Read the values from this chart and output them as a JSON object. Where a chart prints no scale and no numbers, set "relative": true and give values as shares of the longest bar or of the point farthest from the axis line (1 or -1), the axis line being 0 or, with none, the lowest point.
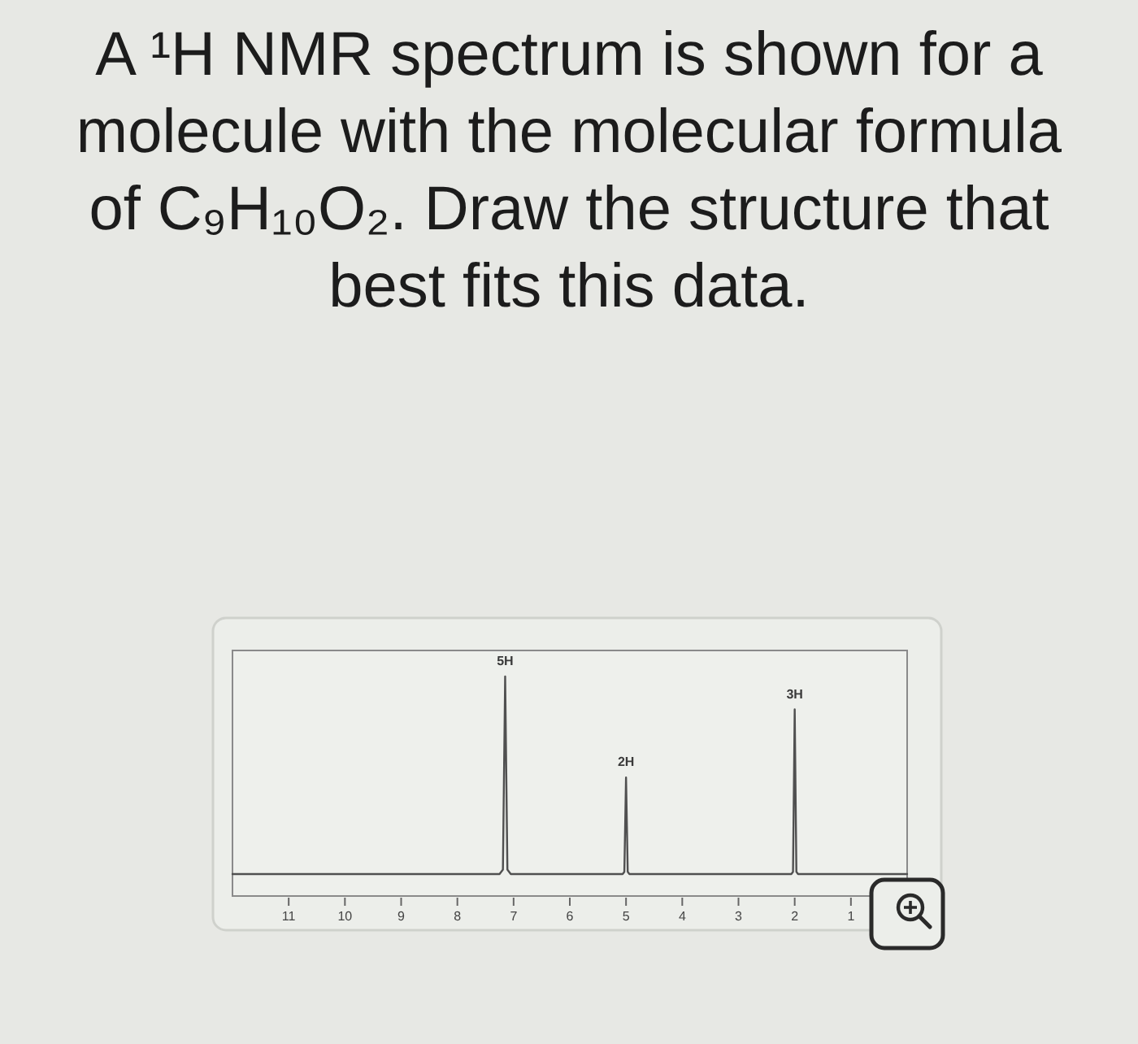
{
  "chart_data": {
    "type": "line",
    "title": "A ¹H NMR spectrum is shown for a molecule with the molecular formula of C₉H₁₀O₂. Draw the structure that best fits this data.",
    "x": [
      12,
      7.25,
      7.19,
      7.15,
      7.11,
      7.05,
      5.06,
      5.03,
      5.0,
      4.97,
      4.94,
      2.06,
      2.03,
      2.0,
      1.97,
      1.94,
      0
    ],
    "values": [
      0.1,
      0.1,
      0.12,
      1,
      0.12,
      0.1,
      0.1,
      0.11,
      0.54,
      0.11,
      0.1,
      0.1,
      0.11,
      0.85,
      0.11,
      0.1,
      0.1
    ],
    "color": "#505050",
    "relative": true,
    "xlim": [
      12,
      0
    ],
    "xticks": [
      11,
      10,
      9,
      8,
      7,
      6,
      5,
      4,
      3,
      2,
      1
    ],
    "annotations": [
      {
        "text": "5H",
        "x": 7.15,
        "y": 1
      },
      {
        "text": "2H",
        "x": 5.0,
        "y": 0.54
      },
      {
        "text": "3H",
        "x": 2.0,
        "y": 0.85
      }
    ]
  }
}
